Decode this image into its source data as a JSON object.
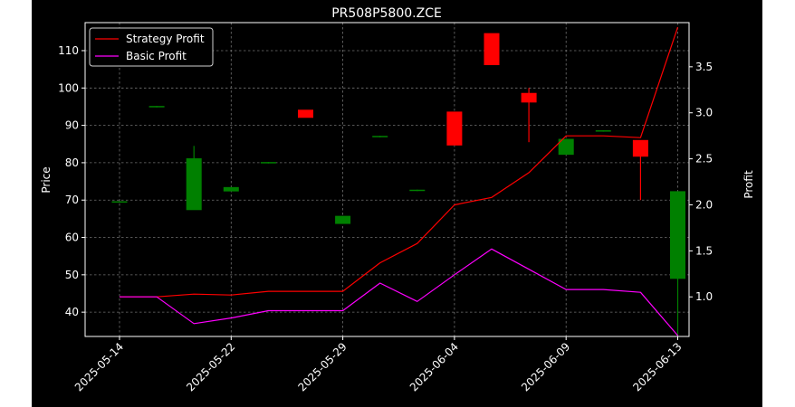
{
  "chart_data": {
    "type": "candlestick",
    "title": "PR508P5800.ZCE",
    "xlabel": "",
    "ylabel": "Price",
    "y2label": "Profit",
    "ylim": [
      33.5,
      117.5
    ],
    "y2lim": [
      0.57,
      3.98
    ],
    "yticks": [
      40,
      50,
      60,
      70,
      80,
      90,
      100,
      110
    ],
    "y2ticks": [
      1.0,
      1.5,
      2.0,
      2.5,
      3.0,
      3.5
    ],
    "y2tick_labels": [
      "1.0",
      "1.5",
      "2.0",
      "2.5",
      "3.0",
      "3.5"
    ],
    "xticks": [
      0,
      3,
      6,
      9,
      12,
      15
    ],
    "x_labels": [
      "2025-05-14",
      "2025-05-22",
      "2025-05-29",
      "2025-06-04",
      "2025-06-09",
      "2025-06-13"
    ],
    "grid": true,
    "legend_position": "top-left",
    "colors": {
      "background": "#000000",
      "figure": "#ffffff",
      "up": "#008000",
      "down": "#ff0000",
      "strategy": "#ff0000",
      "basic": "#ff00ff",
      "text": "#ffffff",
      "grid": "#8c8c8c"
    },
    "candles": [
      {
        "open": 69.5,
        "high": 69.7,
        "low": 69.3,
        "close": 69.5
      },
      {
        "open": 95.0,
        "high": 95.2,
        "low": 94.8,
        "close": 95.0
      },
      {
        "open": 67.5,
        "high": 84.5,
        "low": 67.5,
        "close": 81.0
      },
      {
        "open": 72.5,
        "high": 73.3,
        "low": 72.5,
        "close": 73.3
      },
      {
        "open": 80.0,
        "high": 80.2,
        "low": 79.8,
        "close": 80.0
      },
      {
        "open": 94.0,
        "high": 94.0,
        "low": 92.2,
        "close": 92.2
      },
      {
        "open": 63.8,
        "high": 65.6,
        "low": 63.8,
        "close": 65.6
      },
      {
        "open": 87.0,
        "high": 87.2,
        "low": 86.8,
        "close": 87.0
      },
      {
        "open": 72.6,
        "high": 72.8,
        "low": 72.4,
        "close": 72.6
      },
      {
        "open": 93.5,
        "high": 93.5,
        "low": 84.8,
        "close": 84.8
      },
      {
        "open": 114.5,
        "high": 114.5,
        "low": 106.3,
        "close": 106.3
      },
      {
        "open": 98.5,
        "high": 100.0,
        "low": 85.5,
        "close": 96.3
      },
      {
        "open": 82.3,
        "high": 86.2,
        "low": 82.3,
        "close": 86.2
      },
      {
        "open": 88.5,
        "high": 88.7,
        "low": 88.3,
        "close": 88.5
      },
      {
        "open": 85.9,
        "high": 85.9,
        "low": 70.0,
        "close": 81.8
      },
      {
        "open": 49.1,
        "high": 72.2,
        "low": 34.0,
        "close": 72.2
      }
    ],
    "series": [
      {
        "name": "Strategy Profit",
        "values": [
          1.0,
          1.0,
          1.03,
          1.02,
          1.06,
          1.06,
          1.06,
          1.37,
          1.58,
          2.0,
          2.08,
          2.35,
          2.75,
          2.75,
          2.73,
          3.93
        ]
      },
      {
        "name": "Basic Profit",
        "values": [
          1.0,
          1.0,
          0.71,
          0.77,
          0.85,
          0.85,
          0.85,
          1.15,
          0.95,
          1.24,
          1.52,
          1.3,
          1.08,
          1.08,
          1.05,
          0.58
        ]
      }
    ]
  }
}
